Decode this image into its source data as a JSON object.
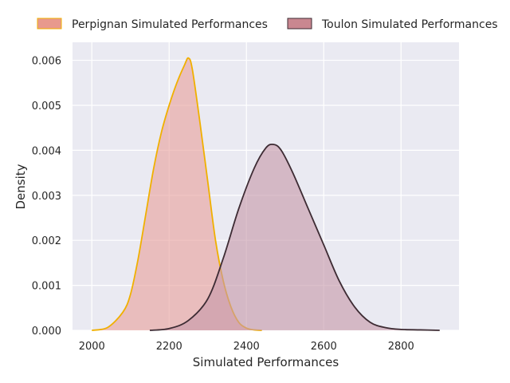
{
  "chart_data": {
    "type": "area",
    "xlabel": "Simulated Performances",
    "ylabel": "Density",
    "xlim": [
      1950,
      2950
    ],
    "ylim": [
      0,
      0.0064
    ],
    "x_ticks": [
      2000,
      2200,
      2400,
      2600,
      2800
    ],
    "x_tick_labels": [
      "2000",
      "2200",
      "2400",
      "2600",
      "2800"
    ],
    "y_ticks": [
      0,
      0.001,
      0.002,
      0.003,
      0.004,
      0.005,
      0.006
    ],
    "y_tick_labels": [
      "0.000",
      "0.001",
      "0.002",
      "0.003",
      "0.004",
      "0.005",
      "0.006"
    ],
    "grid": true,
    "legend_position": "top",
    "series": [
      {
        "name": "Perpignan Simulated Performances",
        "fill_color": "#e8a19c",
        "line_color": "#f0b000",
        "legend_color": "#e8998d",
        "x": [
          2000,
          2040,
          2080,
          2100,
          2120,
          2140,
          2160,
          2180,
          2200,
          2220,
          2240,
          2250,
          2260,
          2280,
          2300,
          2320,
          2340,
          2360,
          2380,
          2400,
          2420,
          2440
        ],
        "y": [
          0,
          6e-05,
          0.0004,
          0.0008,
          0.0016,
          0.0026,
          0.0036,
          0.0044,
          0.005,
          0.0055,
          0.0059,
          0.00605,
          0.0058,
          0.0046,
          0.0033,
          0.002,
          0.0011,
          0.00052,
          0.00018,
          5e-05,
          1e-05,
          0
        ]
      },
      {
        "name": "Toulon Simulated Performances",
        "fill_color": "#c79aaa",
        "line_color": "#3d2b33",
        "legend_color": "#c98790",
        "x": [
          2150,
          2200,
          2250,
          2300,
          2340,
          2380,
          2420,
          2450,
          2470,
          2490,
          2520,
          2560,
          2600,
          2640,
          2680,
          2720,
          2760,
          2800,
          2850,
          2900
        ],
        "y": [
          0,
          4e-05,
          0.00022,
          0.0007,
          0.0016,
          0.0027,
          0.0036,
          0.00405,
          0.00413,
          0.004,
          0.0035,
          0.0027,
          0.0019,
          0.0011,
          0.00052,
          0.00018,
          6e-05,
          2e-05,
          1e-05,
          0
        ]
      }
    ]
  }
}
